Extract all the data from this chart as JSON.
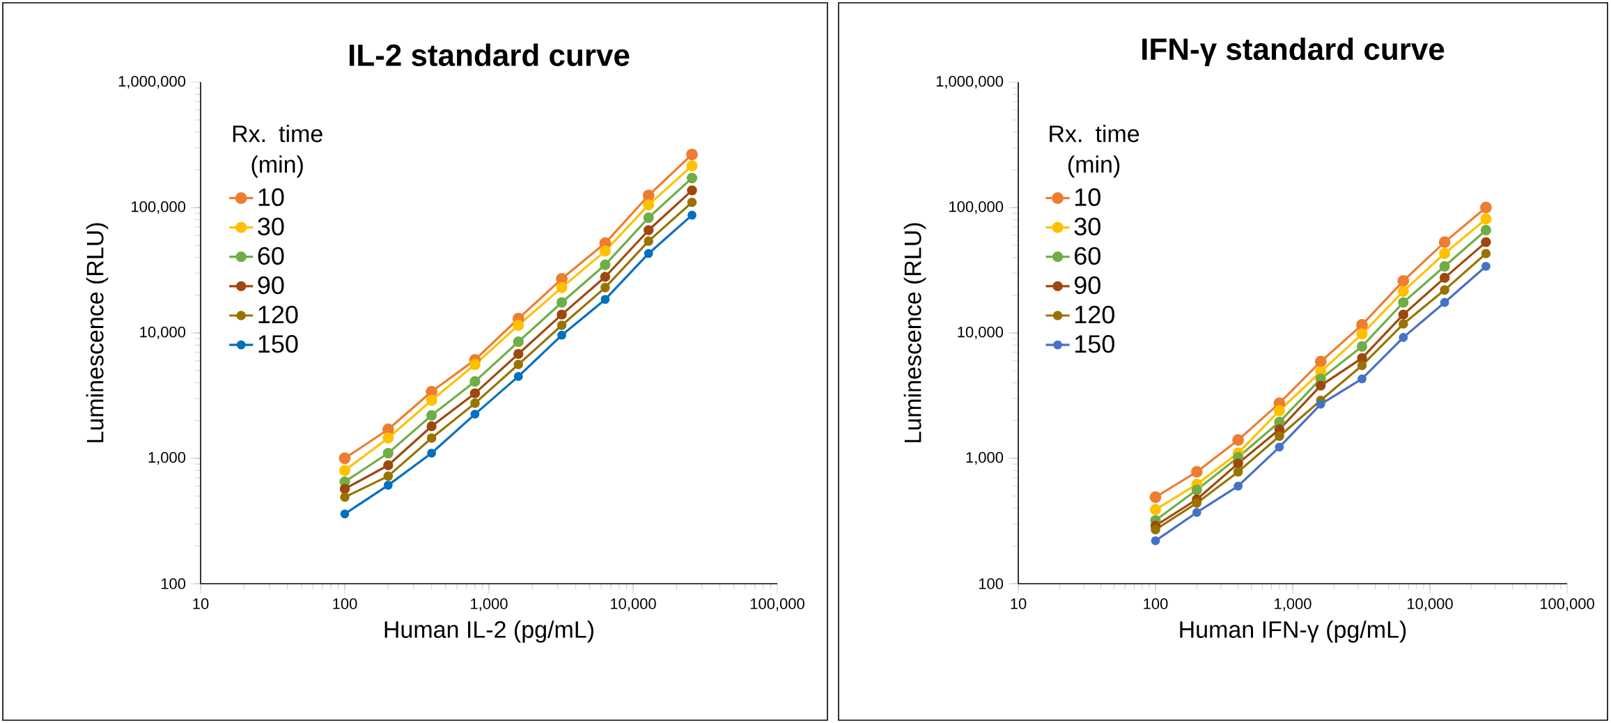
{
  "chart_data": [
    {
      "type": "line",
      "title": "IL-2 standard curve",
      "xlabel": "Human IL-2 (pg/mL)",
      "ylabel": "Luminescence (RLU)",
      "legend_title": "Rx. time (min)",
      "x": [
        100,
        200,
        400,
        800,
        1600,
        3200,
        6400,
        12800,
        25600
      ],
      "series": [
        {
          "name": "10",
          "color": "#ed7d31",
          "values": [
            1000,
            1700,
            3400,
            6100,
            13000,
            27000,
            52000,
            125000,
            265000
          ]
        },
        {
          "name": "30",
          "color": "#ffc000",
          "values": [
            800,
            1450,
            2900,
            5600,
            11500,
            23000,
            45000,
            105000,
            215000
          ]
        },
        {
          "name": "60",
          "color": "#70ad47",
          "values": [
            650,
            1100,
            2200,
            4100,
            8500,
            17500,
            35000,
            83000,
            172000
          ]
        },
        {
          "name": "90",
          "color": "#9e480e",
          "values": [
            570,
            880,
            1800,
            3300,
            6800,
            14000,
            28000,
            66000,
            137000
          ]
        },
        {
          "name": "120",
          "color": "#997300",
          "values": [
            490,
            720,
            1450,
            2750,
            5600,
            11500,
            23000,
            54000,
            110000
          ]
        },
        {
          "name": "150",
          "color": "#0070c0",
          "values": [
            360,
            610,
            1100,
            2250,
            4500,
            9600,
            18500,
            43000,
            87000
          ]
        }
      ],
      "xlim": [
        10,
        100000
      ],
      "ylim": [
        100,
        1000000
      ],
      "xticks": [
        10,
        100,
        {
          "value": 1000,
          "label": "1,000"
        },
        {
          "value": 10000,
          "label": "10,000"
        },
        {
          "value": 100000,
          "label": "100,000"
        }
      ],
      "yticks": [
        100,
        {
          "value": 1000,
          "label": "1,000"
        },
        {
          "value": 10000,
          "label": "10,000"
        },
        {
          "value": 100000,
          "label": "100,000"
        },
        {
          "value": 1000000,
          "label": "1,000,000"
        }
      ],
      "log": "xy",
      "legend": "top left",
      "marker": "circle"
    },
    {
      "type": "line",
      "title": "IFN-γ standard curve",
      "xlabel": "Human IFN-γ (pg/mL)",
      "ylabel": "Luminescence (RLU)",
      "legend_title": "Rx. time (min)",
      "x": [
        100,
        200,
        400,
        800,
        1600,
        3200,
        6400,
        12800,
        25600
      ],
      "series": [
        {
          "name": "10",
          "color": "#ed7d31",
          "values": [
            490,
            780,
            1400,
            2750,
            5900,
            11600,
            26000,
            53000,
            100000
          ]
        },
        {
          "name": "30",
          "color": "#ffc000",
          "values": [
            390,
            620,
            1100,
            2400,
            4900,
            9800,
            21500,
            43000,
            81000
          ]
        },
        {
          "name": "60",
          "color": "#70ad47",
          "values": [
            320,
            560,
            1020,
            1950,
            4300,
            7800,
            17500,
            34000,
            66000
          ]
        },
        {
          "name": "90",
          "color": "#9e480e",
          "values": [
            290,
            470,
            910,
            1700,
            3800,
            6300,
            14000,
            27500,
            53000
          ]
        },
        {
          "name": "120",
          "color": "#997300",
          "values": [
            270,
            440,
            780,
            1500,
            2900,
            5500,
            11800,
            22000,
            43000
          ]
        },
        {
          "name": "150",
          "color": "#4472c4",
          "values": [
            220,
            370,
            600,
            1230,
            2700,
            4300,
            9200,
            17500,
            34000
          ]
        }
      ],
      "xlim": [
        10,
        100000
      ],
      "ylim": [
        100,
        1000000
      ],
      "xticks": [
        10,
        100,
        {
          "value": 1000,
          "label": "1,000"
        },
        {
          "value": 10000,
          "label": "10,000"
        },
        {
          "value": 100000,
          "label": "100,000"
        }
      ],
      "yticks": [
        100,
        {
          "value": 1000,
          "label": "1,000"
        },
        {
          "value": 10000,
          "label": "10,000"
        },
        {
          "value": 100000,
          "label": "100,000"
        },
        {
          "value": 1000000,
          "label": "1,000,000"
        }
      ],
      "log": "xy",
      "legend": "top left",
      "marker": "circle"
    }
  ]
}
